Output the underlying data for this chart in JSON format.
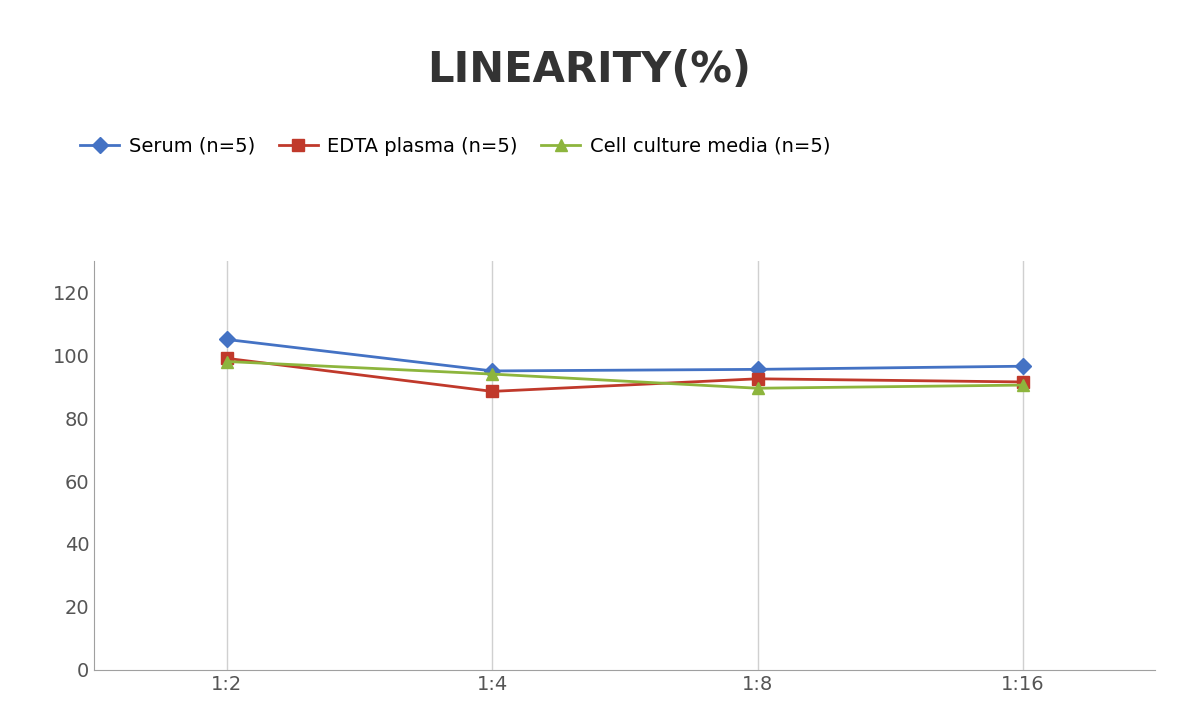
{
  "title": "LINEARITY(%)",
  "title_fontsize": 30,
  "title_fontweight": "bold",
  "x_labels": [
    "1:2",
    "1:4",
    "1:8",
    "1:16"
  ],
  "x_positions": [
    0,
    1,
    2,
    3
  ],
  "series": [
    {
      "label": "Serum (n=5)",
      "values": [
        105,
        95,
        95.5,
        96.5
      ],
      "color": "#4472C4",
      "marker": "D",
      "marker_size": 8,
      "linewidth": 2
    },
    {
      "label": "EDTA plasma (n=5)",
      "values": [
        99,
        88.5,
        92.5,
        91.5
      ],
      "color": "#C0392B",
      "marker": "s",
      "marker_size": 8,
      "linewidth": 2
    },
    {
      "label": "Cell culture media (n=5)",
      "values": [
        98,
        94,
        89.5,
        90.5
      ],
      "color": "#8DB53D",
      "marker": "^",
      "marker_size": 8,
      "linewidth": 2
    }
  ],
  "ylim": [
    0,
    130
  ],
  "yticks": [
    0,
    20,
    40,
    60,
    80,
    100,
    120
  ],
  "background_color": "#ffffff",
  "grid_color": "#d0d0d0",
  "legend_fontsize": 14,
  "tick_fontsize": 14
}
